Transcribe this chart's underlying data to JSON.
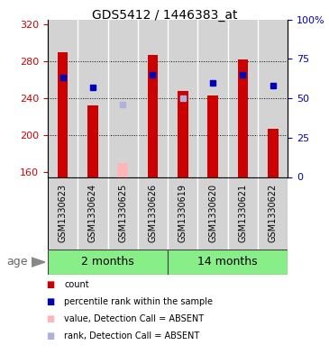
{
  "title": "GDS5412 / 1446383_at",
  "samples": [
    "GSM1330623",
    "GSM1330624",
    "GSM1330625",
    "GSM1330626",
    "GSM1330619",
    "GSM1330620",
    "GSM1330621",
    "GSM1330622"
  ],
  "bar_values": [
    290,
    232,
    170,
    287,
    248,
    243,
    282,
    207
  ],
  "bar_absent": [
    false,
    false,
    true,
    false,
    false,
    false,
    false,
    false
  ],
  "rank_values": [
    63,
    57,
    46,
    65,
    50,
    60,
    65,
    58
  ],
  "rank_absent": [
    false,
    false,
    true,
    false,
    true,
    false,
    false,
    false
  ],
  "groups": [
    {
      "label": "2 months",
      "start": 0,
      "end": 3
    },
    {
      "label": "14 months",
      "start": 4,
      "end": 7
    }
  ],
  "ylim_left": [
    155,
    325
  ],
  "ylim_right": [
    0,
    100
  ],
  "yticks_left": [
    160,
    200,
    240,
    280,
    320
  ],
  "yticks_right": [
    0,
    25,
    50,
    75,
    100
  ],
  "bar_color": "#cc0000",
  "bar_absent_color": "#ffb6b6",
  "rank_color": "#0000bb",
  "rank_absent_color": "#b0b0dd",
  "group_color": "#88ee88",
  "bg_color": "#d3d3d3",
  "dotted_line_values": [
    200,
    240,
    280
  ],
  "left_axis_color": "#cc0000",
  "right_axis_color": "#0000bb",
  "bar_width": 0.35
}
